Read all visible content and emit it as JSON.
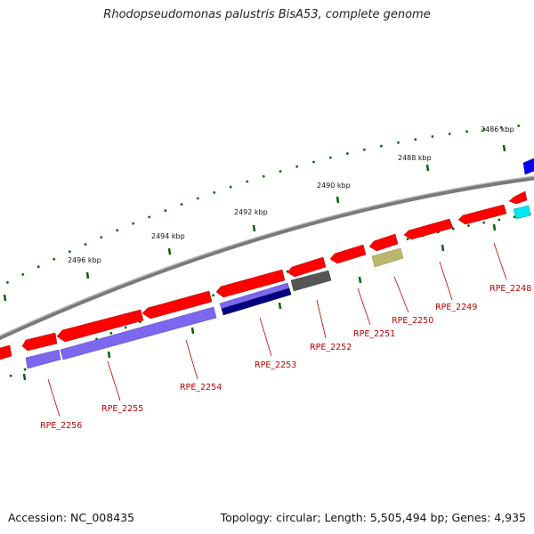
{
  "title": "Rhodopseudomonas palustris BisA53, complete genome",
  "footer": {
    "accession": "Accession: NC_008435",
    "summary": "Topology: circular; Length: 5,505,494 bp; Genes: 4,935"
  },
  "scale_labels": [
    "2486 kbp",
    "2488 kbp",
    "2490 kbp",
    "2492 kbp",
    "2494 kbp",
    "2496 kbp"
  ],
  "gene_labels": [
    "RPE_2248",
    "RPE_2249",
    "RPE_2250",
    "RPE_2251",
    "RPE_2252",
    "RPE_2253",
    "RPE_2254",
    "RPE_2255",
    "RPE_2256"
  ],
  "colors": {
    "backbone": "#7a7a7a",
    "gene_red": "#ff0000",
    "cds_blue": "#7b68ee",
    "cds_navy": "#000080",
    "gray_feature": "#555555",
    "olive_feature": "#bdb76b",
    "cyan_feature": "#00e5ee",
    "blue_feature": "#0000ff",
    "tick_green": "#006400",
    "label_red": "#c00000"
  }
}
